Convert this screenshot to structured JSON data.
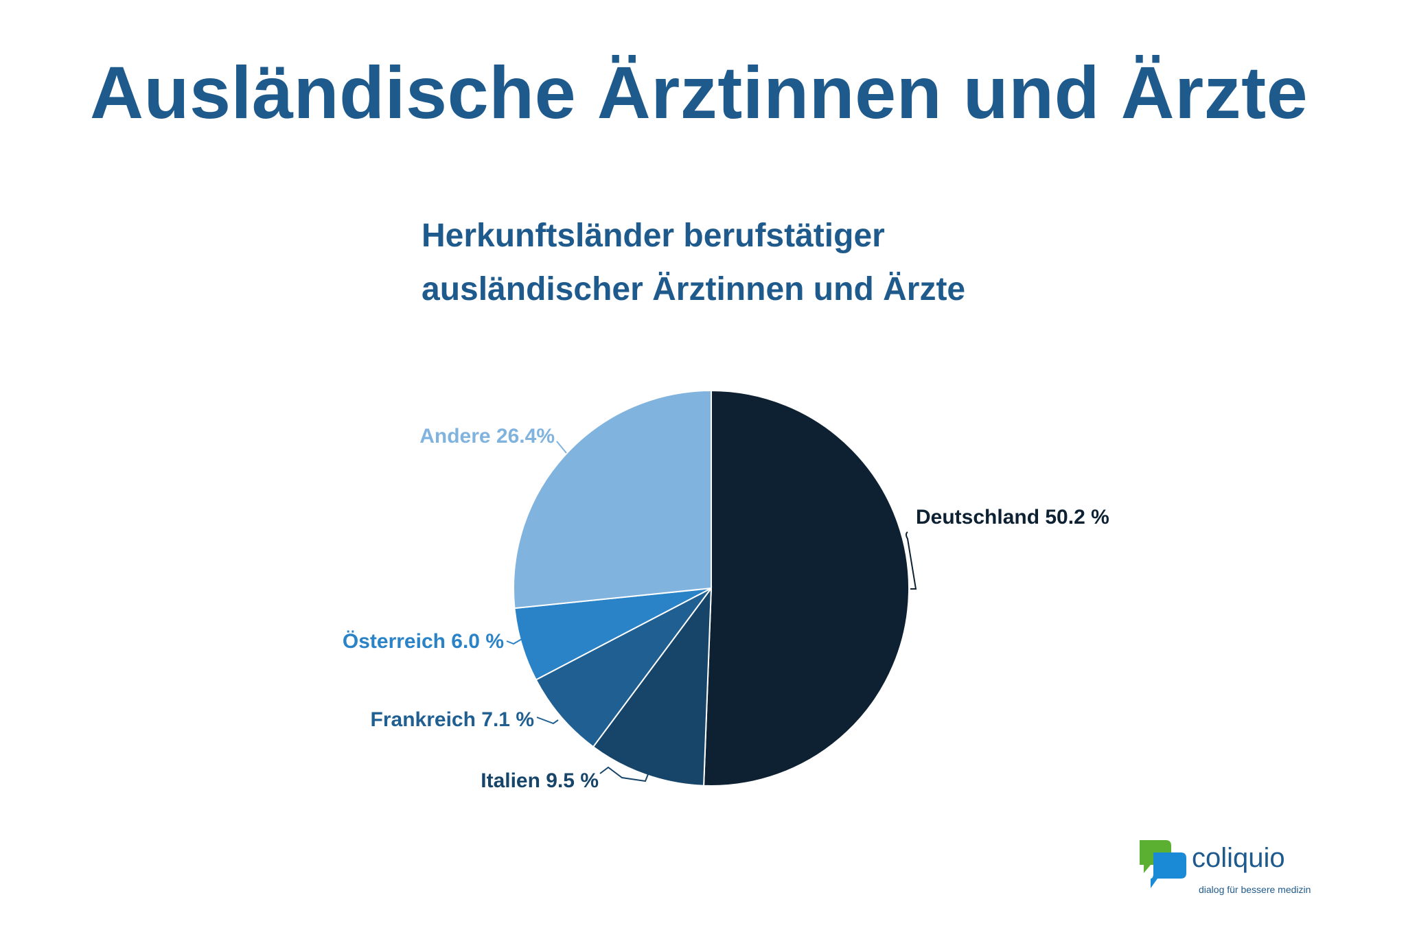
{
  "page": {
    "title": "Ausländische Ärztinnen und Ärzte"
  },
  "chart_data": {
    "type": "pie",
    "title_lines": [
      "Herkunftsländer berufstätiger",
      "ausländischer Ärztinnen und Ärzte"
    ],
    "slices": [
      {
        "label": "Deutschland",
        "value": 50.2,
        "display": "Deutschland 50.2 %",
        "color": "#0d2133",
        "label_color": "#0d2133"
      },
      {
        "label": "Italien",
        "value": 9.5,
        "display": "Italien 9.5 %",
        "color": "#174569",
        "label_color": "#174569"
      },
      {
        "label": "Frankreich",
        "value": 7.1,
        "display": "Frankreich 7.1 %",
        "color": "#1f5f91",
        "label_color": "#1f5f91"
      },
      {
        "label": "Österreich",
        "value": 6.0,
        "display": "Österreich 6.0 %",
        "color": "#2a82c7",
        "label_color": "#2a82c7"
      },
      {
        "label": "Andere",
        "value": 26.4,
        "display": "Andere 26.4%",
        "color": "#80b3dd",
        "label_color": "#80b3dd"
      }
    ]
  },
  "logo": {
    "name": "coliquio",
    "tagline": "dialog für bessere medizin",
    "colors": {
      "green": "#5cb031",
      "blue": "#1a8ad6"
    }
  }
}
